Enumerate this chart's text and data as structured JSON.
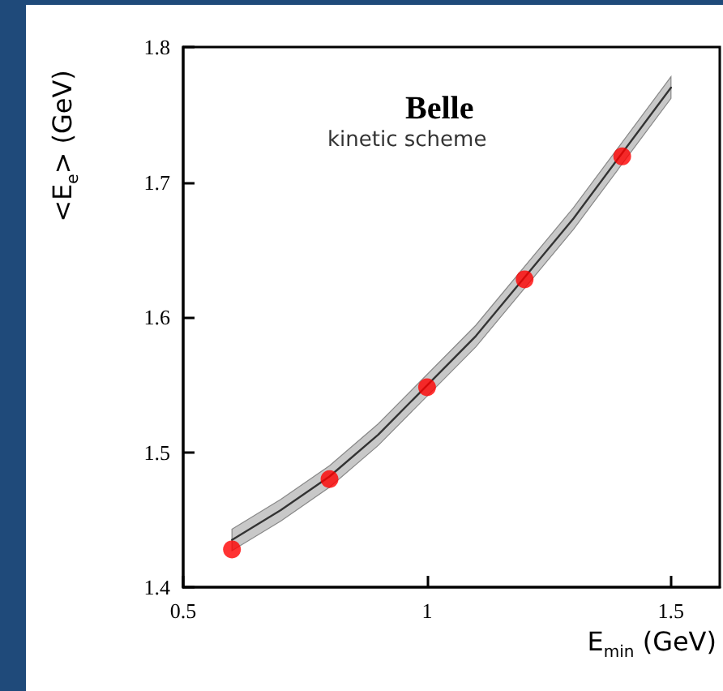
{
  "chart_data": {
    "type": "scatter",
    "xlabel": "E$_{min}$ (GeV)",
    "ylabel": "<E$_{e}$> (GeV)",
    "annotations": [
      "Belle",
      "kinetic scheme"
    ],
    "xlim": [
      0.5,
      1.6
    ],
    "xticks": [
      0.5,
      1,
      1.5
    ],
    "ylim": [
      1.4,
      1.8
    ],
    "yticks": [
      1.4,
      1.5,
      1.6,
      1.7,
      1.8
    ],
    "grid": false,
    "marker": "circle",
    "series": [
      {
        "type": "line",
        "marker": "none",
        "color": "#333333",
        "line_style": "solid",
        "x": [
          0.6,
          0.7,
          0.8,
          0.9,
          1.1,
          1.3,
          1.5
        ],
        "values": [
          1.435,
          1.457,
          1.482,
          1.513,
          1.586,
          1.673,
          1.77
        ],
        "lower": [
          1.427,
          1.449,
          1.474,
          1.505,
          1.578,
          1.665,
          1.762
        ],
        "upper": [
          1.443,
          1.465,
          1.49,
          1.521,
          1.594,
          1.681,
          1.778
        ]
      },
      {
        "color": "#ff0000",
        "x": [
          0.6,
          0.8,
          1.0,
          1.2,
          1.4
        ],
        "values": [
          1.428,
          1.48,
          1.548,
          1.628,
          1.719
        ]
      }
    ]
  }
}
